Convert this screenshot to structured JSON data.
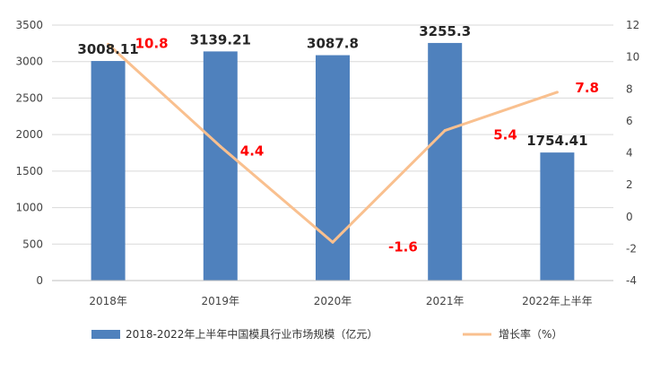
{
  "chart_data": {
    "type": "bar",
    "categories": [
      "2018年",
      "2019年",
      "2020年",
      "2021年",
      "2022年上半年"
    ],
    "series": [
      {
        "name": "2018-2022年上半年中国模具行业市场规模（亿元）",
        "type": "bar",
        "axis": "left",
        "values": [
          3008.11,
          3139.21,
          3087.8,
          3255.3,
          1754.41
        ],
        "labels": [
          "3008.11",
          "3139.21",
          "3087.8",
          "3255.3",
          "1754.41"
        ],
        "color": "#4f81bd"
      },
      {
        "name": "增长率（%）",
        "type": "line",
        "axis": "right",
        "values": [
          10.8,
          4.4,
          -1.6,
          5.4,
          7.8
        ],
        "labels": [
          "10.8",
          "4.4",
          "-1.6",
          "5.4",
          "7.8"
        ],
        "color": "#f9c08f",
        "label_color": "#ff0000"
      }
    ],
    "y_left": {
      "lim": [
        0,
        3500
      ],
      "ticks": [
        0,
        500,
        1000,
        1500,
        2000,
        2500,
        3000,
        3500
      ]
    },
    "y_right": {
      "lim": [
        -4,
        12
      ],
      "ticks": [
        -4,
        -2,
        0,
        2,
        4,
        6,
        8,
        10,
        12
      ]
    },
    "grid": true,
    "legend_position": "bottom"
  }
}
